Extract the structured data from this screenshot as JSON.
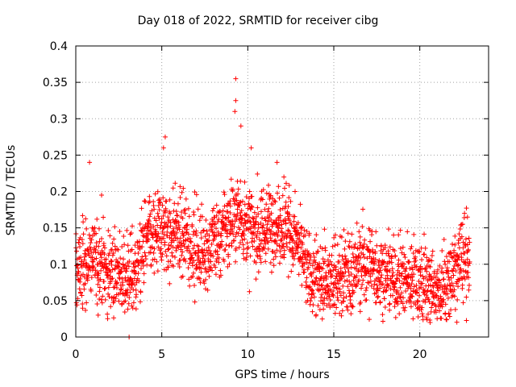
{
  "chart_data": {
    "type": "scatter",
    "title": "Day 018 of 2022, SRMTID for receiver cibg",
    "xlabel": "GPS time / hours",
    "ylabel": "SRMTID / TECUs",
    "xlim": [
      0,
      24
    ],
    "ylim": [
      0,
      0.4
    ],
    "xticks": [
      0,
      5,
      10,
      15,
      20
    ],
    "xtick_labels": [
      "0",
      "5",
      "10",
      "15",
      "20"
    ],
    "yticks": [
      0,
      0.05,
      0.1,
      0.15,
      0.2,
      0.25,
      0.3,
      0.35,
      0.4
    ],
    "ytick_labels": [
      "0",
      "0.05",
      "0.1",
      "0.15",
      "0.2",
      "0.25",
      "0.3",
      "0.35",
      "0.4"
    ],
    "grid": true,
    "marker": "+",
    "color": "#ff0000",
    "trend_hours": [
      0,
      0.5,
      1,
      1.5,
      2,
      2.5,
      3,
      3.5,
      4,
      4.5,
      5,
      5.5,
      6,
      6.5,
      7,
      7.5,
      8,
      8.5,
      9,
      9.5,
      10,
      10.5,
      11,
      11.5,
      12,
      12.5,
      13,
      13.5,
      14,
      14.5,
      15,
      15.5,
      16,
      16.5,
      17,
      17.5,
      18,
      18.5,
      19,
      19.5,
      20,
      20.5,
      21,
      21.5,
      22,
      22.5,
      22.9
    ],
    "trend_values": [
      0.09,
      0.1,
      0.11,
      0.1,
      0.09,
      0.085,
      0.085,
      0.09,
      0.13,
      0.14,
      0.15,
      0.14,
      0.14,
      0.13,
      0.12,
      0.12,
      0.13,
      0.14,
      0.16,
      0.17,
      0.15,
      0.14,
      0.15,
      0.16,
      0.16,
      0.14,
      0.12,
      0.09,
      0.08,
      0.08,
      0.085,
      0.09,
      0.09,
      0.1,
      0.1,
      0.09,
      0.085,
      0.08,
      0.08,
      0.08,
      0.075,
      0.07,
      0.06,
      0.065,
      0.09,
      0.11,
      0.1
    ],
    "scatter_spread": 0.035,
    "points_per_hour": 95,
    "highlight_points": [
      {
        "x": 3.1,
        "y": 0.0
      },
      {
        "x": 9.3,
        "y": 0.355
      },
      {
        "x": 9.3,
        "y": 0.325
      },
      {
        "x": 9.25,
        "y": 0.31
      },
      {
        "x": 9.6,
        "y": 0.29
      },
      {
        "x": 5.2,
        "y": 0.275
      },
      {
        "x": 5.1,
        "y": 0.26
      },
      {
        "x": 10.2,
        "y": 0.26
      },
      {
        "x": 11.7,
        "y": 0.24
      },
      {
        "x": 12.1,
        "y": 0.22
      },
      {
        "x": 0.8,
        "y": 0.24
      },
      {
        "x": 1.5,
        "y": 0.195
      },
      {
        "x": 22.6,
        "y": 0.17
      },
      {
        "x": 1.3,
        "y": 0.03
      },
      {
        "x": 20.6,
        "y": 0.02
      }
    ]
  }
}
